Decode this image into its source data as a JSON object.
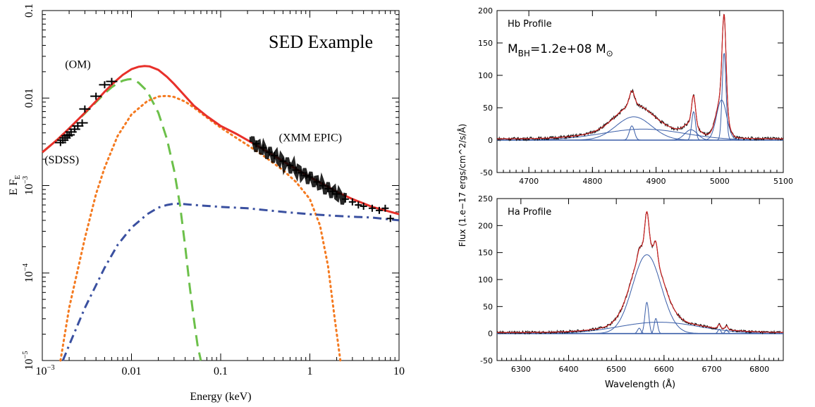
{
  "chart_data": [
    {
      "type": "line",
      "title": "SED Example",
      "xlabel": "Energy (keV)",
      "ylabel": "E F",
      "ylabel_sub": "E",
      "xscale": "log",
      "yscale": "log",
      "xlim": [
        0.001,
        10
      ],
      "ylim": [
        1e-05,
        0.1
      ],
      "x_ticks": [
        {
          "value": 0.001,
          "base": "10",
          "exp": "−3"
        },
        {
          "value": 0.01,
          "label": "0.01"
        },
        {
          "value": 0.1,
          "label": "0.1"
        },
        {
          "value": 1,
          "label": "1"
        },
        {
          "value": 10,
          "label": "10"
        }
      ],
      "y_ticks": [
        {
          "value": 1e-05,
          "base": "10",
          "exp": "−5"
        },
        {
          "value": 0.0001,
          "base": "10",
          "exp": "−4"
        },
        {
          "value": 0.001,
          "base": "10",
          "exp": "−3"
        },
        {
          "value": 0.01,
          "label": "0.01"
        },
        {
          "value": 0.1,
          "label": "0.1"
        }
      ],
      "annotations": [
        {
          "text": "(OM)",
          "x": 0.0018,
          "y": 0.022
        },
        {
          "text": "(SDSS)",
          "x": 0.00106,
          "y": 0.0018
        },
        {
          "text": "(XMM EPIC)",
          "x": 0.45,
          "y": 0.0032
        }
      ],
      "series": [
        {
          "style": "solid",
          "color": "#e8302a",
          "x": [
            0.001,
            0.0015,
            0.002,
            0.003,
            0.004,
            0.005,
            0.006,
            0.007,
            0.008,
            0.01,
            0.012,
            0.014,
            0.016,
            0.02,
            0.025,
            0.03,
            0.04,
            0.05,
            0.07,
            0.1,
            0.15,
            0.2,
            0.3,
            0.5,
            0.7,
            1,
            1.5,
            2,
            3,
            5,
            7,
            10
          ],
          "y": [
            0.0024,
            0.0034,
            0.0045,
            0.0068,
            0.0092,
            0.0118,
            0.0142,
            0.0164,
            0.0184,
            0.0214,
            0.0228,
            0.0232,
            0.023,
            0.021,
            0.0175,
            0.0145,
            0.0105,
            0.0082,
            0.0062,
            0.0048,
            0.0039,
            0.0033,
            0.0026,
            0.0019,
            0.00155,
            0.00125,
            0.001,
            0.00085,
            0.0007,
            0.00057,
            0.00052,
            0.00047
          ]
        },
        {
          "style": "dashed",
          "color": "#6cc04a",
          "x": [
            0.001,
            0.0015,
            0.002,
            0.003,
            0.004,
            0.005,
            0.006,
            0.007,
            0.008,
            0.009,
            0.01,
            0.012,
            0.015,
            0.02,
            0.025,
            0.03,
            0.035,
            0.04,
            0.045,
            0.05,
            0.055,
            0.06
          ],
          "y": [
            0.0024,
            0.0034,
            0.0045,
            0.0067,
            0.009,
            0.0113,
            0.0133,
            0.0148,
            0.0158,
            0.0163,
            0.0165,
            0.015,
            0.012,
            0.0068,
            0.0034,
            0.0015,
            0.0006,
            0.0002,
            7e-05,
            3e-05,
            1.5e-05,
            1e-05
          ]
        },
        {
          "style": "dotted",
          "color": "#f47a20",
          "x": [
            0.0016,
            0.002,
            0.003,
            0.004,
            0.005,
            0.007,
            0.01,
            0.015,
            0.02,
            0.025,
            0.03,
            0.04,
            0.05,
            0.07,
            0.1,
            0.15,
            0.2,
            0.3,
            0.5,
            0.7,
            1,
            1.3,
            1.6,
            1.9,
            2.2
          ],
          "y": [
            1e-05,
            4e-05,
            0.00025,
            0.0008,
            0.0016,
            0.0037,
            0.0065,
            0.0092,
            0.0104,
            0.0106,
            0.0103,
            0.0091,
            0.0078,
            0.006,
            0.0046,
            0.0035,
            0.0029,
            0.0022,
            0.0015,
            0.0011,
            0.0007,
            0.00035,
            0.00012,
            3e-05,
            1e-05
          ]
        },
        {
          "style": "dashdot",
          "color": "#3a50a0",
          "x": [
            0.0017,
            0.002,
            0.003,
            0.005,
            0.007,
            0.01,
            0.015,
            0.02,
            0.025,
            0.03,
            0.035,
            0.05,
            0.1,
            0.2,
            0.5,
            1,
            2,
            3,
            5,
            10
          ],
          "y": [
            1e-05,
            1.5e-05,
            4e-05,
            0.000115,
            0.00021,
            0.00033,
            0.00047,
            0.00056,
            0.0006,
            0.00062,
            0.00062,
            0.0006,
            0.00057,
            0.00055,
            0.0005,
            0.00047,
            0.00045,
            0.00044,
            0.00043,
            0.0004
          ]
        }
      ],
      "data_points": {
        "color": "#000000",
        "x": [
          0.0016,
          0.0017,
          0.0018,
          0.0019,
          0.002,
          0.0021,
          0.0023,
          0.0025,
          0.0028,
          0.003,
          0.004,
          0.005,
          0.006,
          0.25,
          0.3,
          0.35,
          0.4,
          0.5,
          0.6,
          0.7,
          0.8,
          0.9,
          1.0,
          1.2,
          1.4,
          1.6,
          1.8,
          2.0,
          2.5,
          3.0,
          3.5,
          4.0,
          5.0,
          6.0,
          7.0,
          8.0
        ],
        "y": [
          0.0031,
          0.0033,
          0.0035,
          0.0037,
          0.0038,
          0.0041,
          0.0044,
          0.0048,
          0.0052,
          0.0075,
          0.0105,
          0.0142,
          0.0155,
          0.003,
          0.0027,
          0.0024,
          0.0022,
          0.0019,
          0.0017,
          0.0015,
          0.0014,
          0.0013,
          0.00125,
          0.0011,
          0.001,
          0.00092,
          0.00086,
          0.0008,
          0.0007,
          0.00065,
          0.0006,
          0.00058,
          0.00055,
          0.00052,
          0.00055,
          0.00042
        ]
      }
    },
    {
      "type": "line",
      "title": "Hb Profile",
      "xlabel": "",
      "ylabel": "Flux (1.e−17 ergs/cm^2/s/Å)",
      "xlim": [
        4650,
        5100
      ],
      "ylim": [
        -50,
        200
      ],
      "x_ticks": [
        4700,
        4800,
        4900,
        5000,
        5100
      ],
      "y_ticks": [
        -50,
        0,
        50,
        100,
        150,
        200
      ],
      "annotation_base": "M",
      "annotation_sub": "BH",
      "annotation_value": "=1.2e+08  M",
      "annotation_unit_sub": "⊙",
      "observed_color": "#000000",
      "model_color": "#cc2222",
      "component_color": "#3a5ea8",
      "continuum": 2,
      "components": [
        {
          "center": 4865,
          "amp": 36,
          "sigma": 28
        },
        {
          "center": 4880,
          "amp": 17,
          "sigma": 65
        },
        {
          "center": 4862,
          "amp": 22,
          "sigma": 4
        },
        {
          "center": 4959,
          "amp": 44,
          "sigma": 3
        },
        {
          "center": 4955,
          "amp": 16,
          "sigma": 10
        },
        {
          "center": 5007,
          "amp": 135,
          "sigma": 3
        },
        {
          "center": 5003,
          "amp": 62,
          "sigma": 8
        }
      ]
    },
    {
      "type": "line",
      "title": "Ha Profile",
      "xlabel": "Wavelength (Å)",
      "ylabel": "Flux (1.e−17 ergs/cm^2/s/Å)",
      "xlim": [
        6250,
        6850
      ],
      "ylim": [
        -50,
        250
      ],
      "x_ticks": [
        6300,
        6400,
        6500,
        6600,
        6700,
        6800
      ],
      "y_ticks": [
        -50,
        0,
        50,
        100,
        150,
        200,
        250
      ],
      "observed_color": "#000000",
      "model_color": "#cc2222",
      "component_color": "#3a5ea8",
      "continuum": 2,
      "components": [
        {
          "center": 6564,
          "amp": 146,
          "sigma": 30
        },
        {
          "center": 6590,
          "amp": 21,
          "sigma": 85
        },
        {
          "center": 6564,
          "amp": 58,
          "sigma": 4
        },
        {
          "center": 6583,
          "amp": 28,
          "sigma": 3.5
        },
        {
          "center": 6548,
          "amp": 10,
          "sigma": 3.5
        },
        {
          "center": 6716,
          "amp": 8,
          "sigma": 3
        },
        {
          "center": 6731,
          "amp": 7,
          "sigma": 3
        }
      ]
    }
  ]
}
